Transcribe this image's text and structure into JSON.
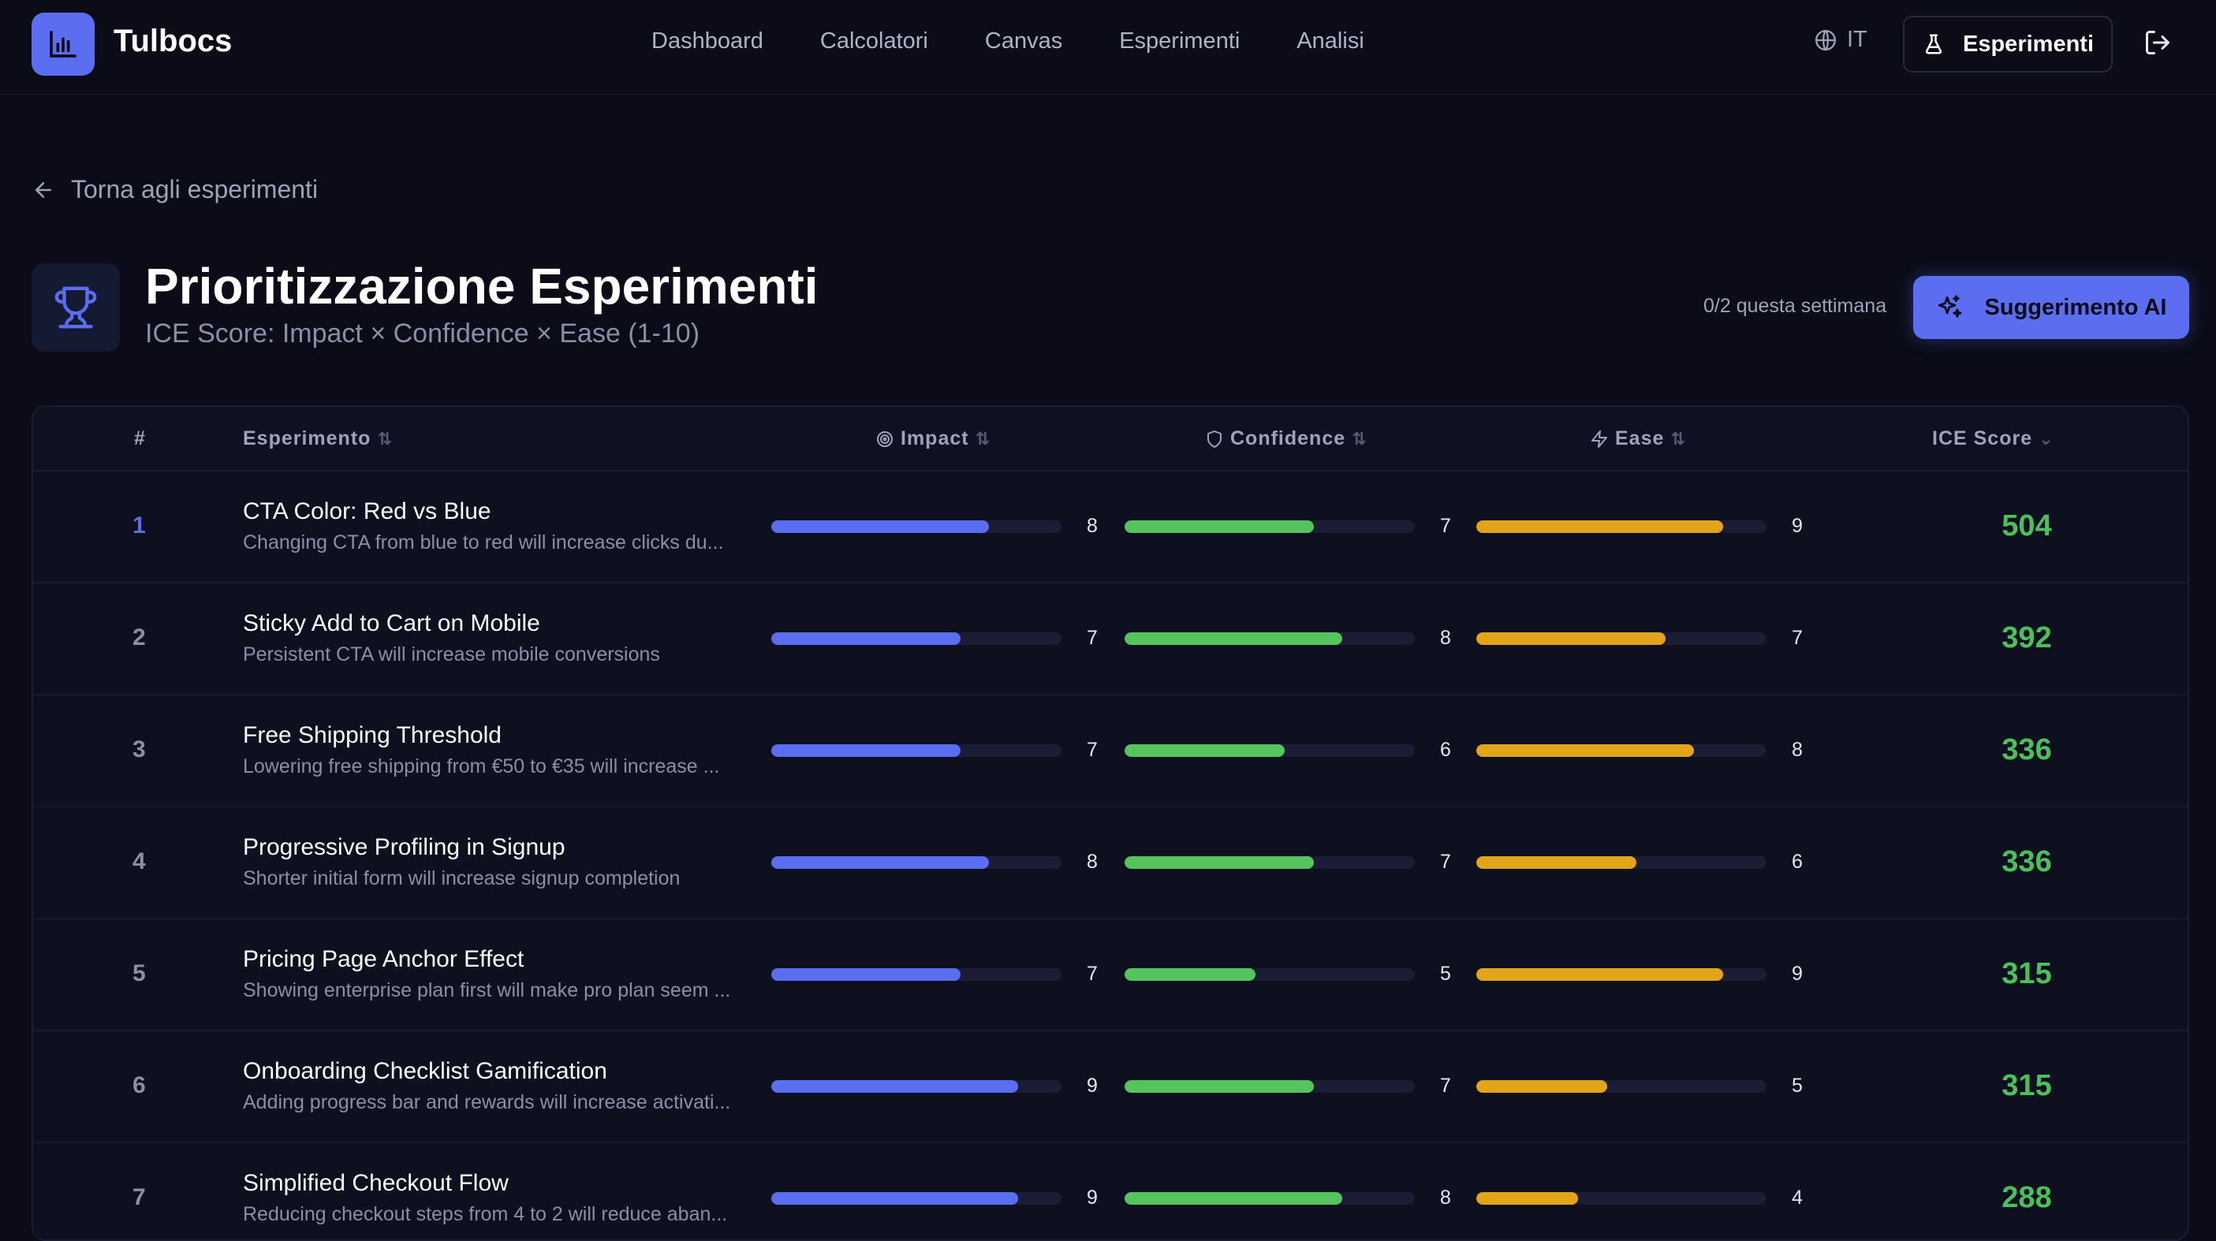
{
  "app": {
    "brand": "Tulbocs"
  },
  "nav": [
    {
      "label": "Dashboard"
    },
    {
      "label": "Calcolatori"
    },
    {
      "label": "Canvas"
    },
    {
      "label": "Esperimenti"
    },
    {
      "label": "Analisi"
    }
  ],
  "header_right": {
    "language": "IT",
    "experiments_button": "Esperimenti"
  },
  "back_link": "Torna agli esperimenti",
  "page": {
    "title": "Prioritizzazione Esperimenti",
    "subtitle": "ICE Score: Impact × Confidence × Ease (1-10)",
    "quota": "0/2 questa settimana",
    "ai_button": "Suggerimento AI"
  },
  "colors": {
    "accent": "#5b6df0",
    "impact": "#5b6df0",
    "confidence": "#55c45c",
    "ease": "#e3a41c",
    "score": "#4bc05a"
  },
  "table": {
    "columns": {
      "rank": "#",
      "experiment": "Esperimento",
      "impact": "Impact",
      "confidence": "Confidence",
      "ease": "Ease",
      "ice": "ICE Score"
    },
    "rows": [
      {
        "rank": "1",
        "name": "CTA Color: Red vs Blue",
        "description": "Changing CTA from blue to red will increase clicks du...",
        "impact": 8,
        "confidence": 7,
        "ease": 9,
        "ice": "504"
      },
      {
        "rank": "2",
        "name": "Sticky Add to Cart on Mobile",
        "description": "Persistent CTA will increase mobile conversions",
        "impact": 7,
        "confidence": 8,
        "ease": 7,
        "ice": "392"
      },
      {
        "rank": "3",
        "name": "Free Shipping Threshold",
        "description": "Lowering free shipping from €50 to €35 will increase ...",
        "impact": 7,
        "confidence": 6,
        "ease": 8,
        "ice": "336"
      },
      {
        "rank": "4",
        "name": "Progressive Profiling in Signup",
        "description": "Shorter initial form will increase signup completion",
        "impact": 8,
        "confidence": 7,
        "ease": 6,
        "ice": "336"
      },
      {
        "rank": "5",
        "name": "Pricing Page Anchor Effect",
        "description": "Showing enterprise plan first will make pro plan seem ...",
        "impact": 7,
        "confidence": 5,
        "ease": 9,
        "ice": "315"
      },
      {
        "rank": "6",
        "name": "Onboarding Checklist Gamification",
        "description": "Adding progress bar and rewards will increase activati...",
        "impact": 9,
        "confidence": 7,
        "ease": 5,
        "ice": "315"
      },
      {
        "rank": "7",
        "name": "Simplified Checkout Flow",
        "description": "Reducing checkout steps from 4 to 2 will reduce aban...",
        "impact": 9,
        "confidence": 8,
        "ease": 4,
        "ice": "288"
      }
    ]
  }
}
